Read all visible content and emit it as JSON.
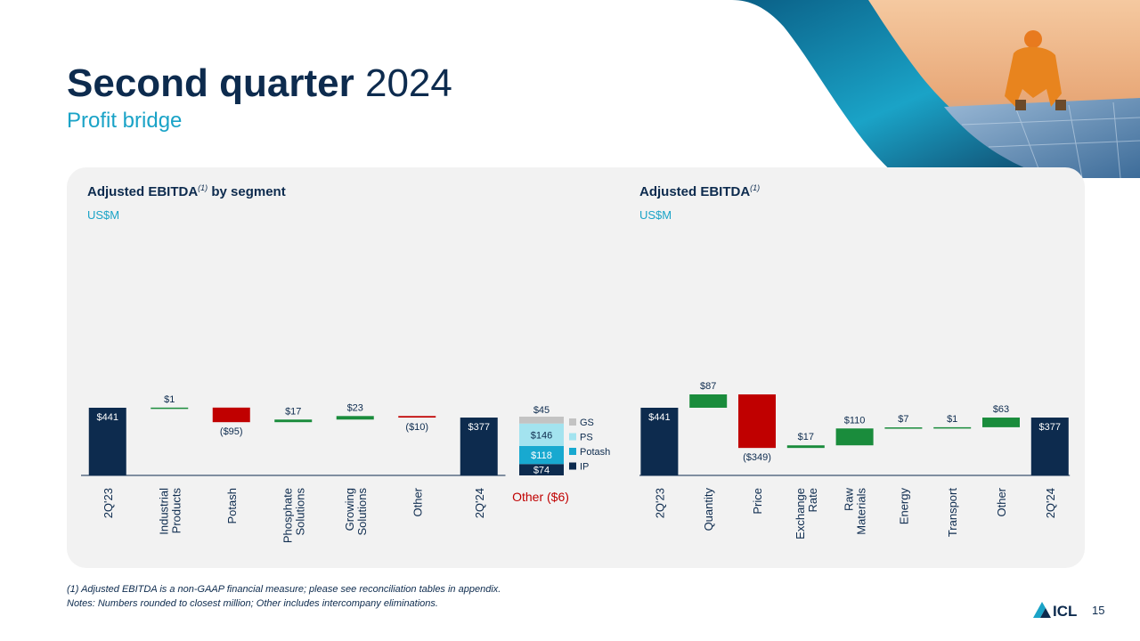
{
  "header": {
    "title_bold": "Second quarter",
    "title_regular": "2024",
    "subtitle": "Profit bridge"
  },
  "left_panel": {
    "title": "Adjusted EBITDA",
    "title_sup": "(1)",
    "title_suffix": " by segment",
    "units": "US$M",
    "other_note": "Other ($6)"
  },
  "right_panel": {
    "title": "Adjusted EBITDA",
    "title_sup": "(1)",
    "units": "US$M"
  },
  "footnotes": {
    "line1": "(1) Adjusted EBITDA is a non-GAAP financial measure; please see reconciliation tables in appendix.",
    "line2": "Notes: Numbers rounded to closest million; Other includes intercompany eliminations."
  },
  "logo_text": "ICL",
  "page_number": "15",
  "colors": {
    "navy": "#0d2b4e",
    "teal": "#1aa3c7",
    "increase": "#1a8c3c",
    "decrease": "#c00000",
    "panel_bg": "#f2f2f2",
    "gs": "#c3c3c3",
    "ps": "#a3e3ef",
    "potash": "#18a9d0",
    "ip": "#0d2b4e"
  },
  "chart_data": [
    {
      "type": "bar",
      "subtype": "waterfall",
      "title": "Adjusted EBITDA(1) by segment",
      "ylabel": "US$M",
      "categories": [
        [
          "2Q'23"
        ],
        [
          "Industrial",
          "Products"
        ],
        [
          "Potash"
        ],
        [
          "Phosphate",
          "Solutions"
        ],
        [
          "Growing",
          "Solutions"
        ],
        [
          "Other"
        ],
        [
          "2Q'24"
        ]
      ],
      "steps": [
        {
          "kind": "total",
          "value": 441,
          "label": "$441"
        },
        {
          "kind": "delta",
          "value": 1,
          "label": "$1"
        },
        {
          "kind": "delta",
          "value": -95,
          "label": "($95)"
        },
        {
          "kind": "delta",
          "value": 17,
          "label": "$17"
        },
        {
          "kind": "delta",
          "value": 23,
          "label": "$23"
        },
        {
          "kind": "delta",
          "value": -10,
          "label": "($10)"
        },
        {
          "kind": "total",
          "value": 377,
          "label": "$377"
        }
      ],
      "breakdown": {
        "segments": [
          {
            "name": "IP",
            "value": 74,
            "label": "$74",
            "color_key": "ip"
          },
          {
            "name": "Potash",
            "value": 118,
            "label": "$118",
            "color_key": "potash"
          },
          {
            "name": "PS",
            "value": 146,
            "label": "$146",
            "color_key": "ps"
          },
          {
            "name": "GS",
            "value": 45,
            "label": "$45",
            "color_key": "gs"
          }
        ],
        "other": {
          "value": -6,
          "label": "Other ($6)"
        }
      },
      "legend_position": "right"
    },
    {
      "type": "bar",
      "subtype": "waterfall",
      "title": "Adjusted EBITDA(1)",
      "ylabel": "US$M",
      "categories": [
        [
          "2Q'23"
        ],
        [
          "Quantity"
        ],
        [
          "Price"
        ],
        [
          "Exchange",
          "Rate"
        ],
        [
          "Raw",
          "Materials"
        ],
        [
          "Energy"
        ],
        [
          "Transport"
        ],
        [
          "Other"
        ],
        [
          "2Q'24"
        ]
      ],
      "steps": [
        {
          "kind": "total",
          "value": 441,
          "label": "$441"
        },
        {
          "kind": "delta",
          "value": 87,
          "label": "$87"
        },
        {
          "kind": "delta",
          "value": -349,
          "label": "($349)"
        },
        {
          "kind": "delta",
          "value": 17,
          "label": "$17"
        },
        {
          "kind": "delta",
          "value": 110,
          "label": "$110"
        },
        {
          "kind": "delta",
          "value": 7,
          "label": "$7"
        },
        {
          "kind": "delta",
          "value": 1,
          "label": "$1"
        },
        {
          "kind": "delta",
          "value": 63,
          "label": "$63"
        },
        {
          "kind": "total",
          "value": 377,
          "label": "$377"
        }
      ]
    }
  ]
}
